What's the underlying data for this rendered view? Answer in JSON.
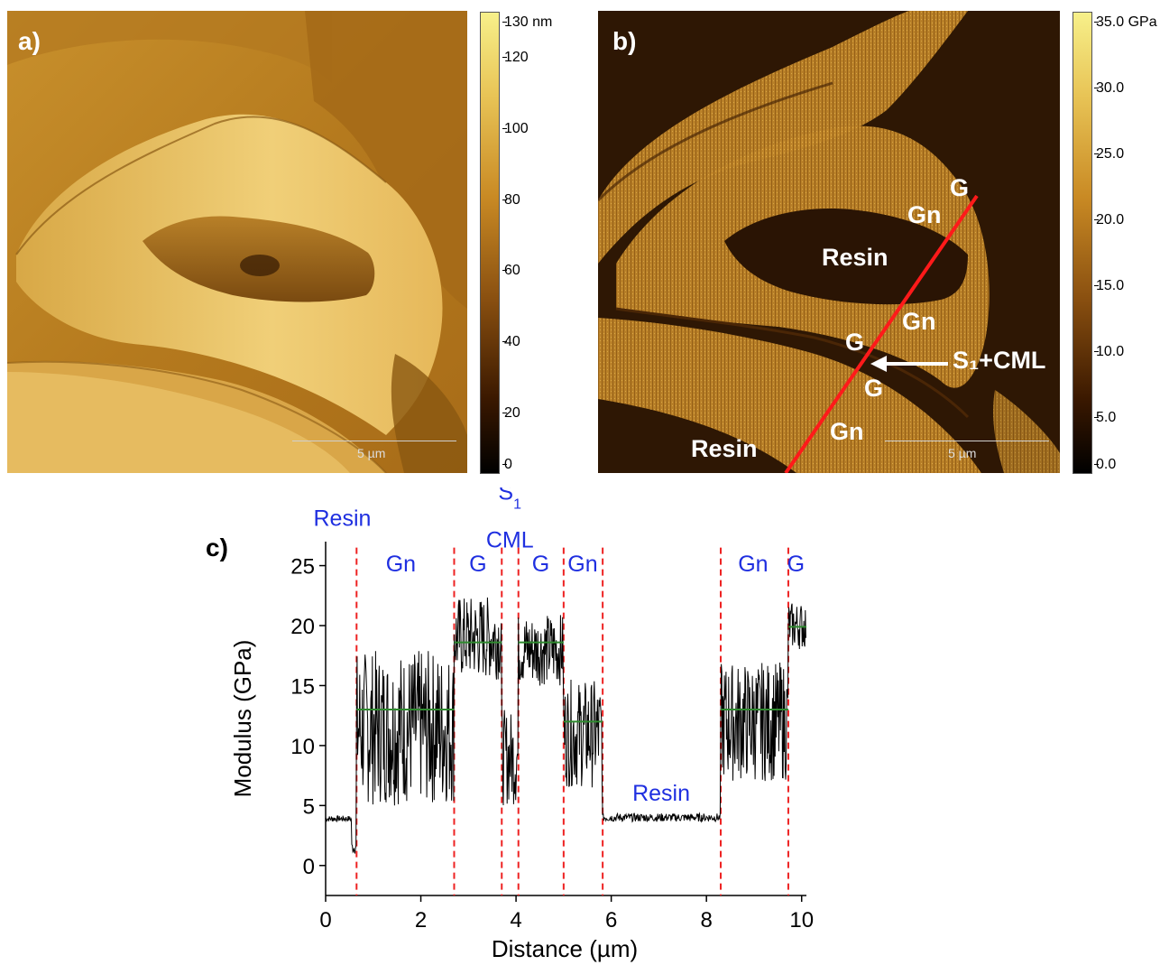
{
  "panel_a": {
    "letter": "a)",
    "scale_bar": "5 µm",
    "colorbar": {
      "ticks": [
        "130 nm",
        "120",
        "100",
        "80",
        "60",
        "40",
        "20",
        "0"
      ],
      "colors": [
        "#f7f08a",
        "#d6a032",
        "#8a5010",
        "#2a1200",
        "#000000"
      ]
    }
  },
  "panel_b": {
    "letter": "b)",
    "scale_bar": "5 µm",
    "labels": {
      "g_top": "G",
      "gn_top": "Gn",
      "resin_center": "Resin",
      "gn_mid": "Gn",
      "g_mid": "G",
      "s1_cml": "S₁+CML",
      "g_low": "G",
      "gn_low": "Gn",
      "resin_bottom": "Resin"
    },
    "colorbar": {
      "ticks": [
        "35.0 GPa",
        "30.0",
        "25.0",
        "20.0",
        "15.0",
        "10.0",
        "5.0",
        "0.0"
      ],
      "colors": [
        "#f7f08a",
        "#d6a032",
        "#8a5010",
        "#2a1200",
        "#000000"
      ]
    },
    "line_color": "#ff1a1a"
  },
  "chart_data": {
    "type": "line",
    "panel_label": "c)",
    "xlabel": "Distance (µm)",
    "ylabel": "Modulus (GPa)",
    "xlim": [
      0,
      10.1
    ],
    "ylim": [
      -2.5,
      27
    ],
    "xticks": [
      0,
      2,
      4,
      6,
      8,
      10
    ],
    "yticks": [
      0,
      5,
      10,
      15,
      20,
      25
    ],
    "region_boundaries": [
      0.65,
      2.7,
      3.7,
      4.05,
      5.0,
      5.82,
      8.3,
      9.72
    ],
    "region_labels": [
      {
        "text": "Resin",
        "x": 0.35,
        "y": 28.3
      },
      {
        "text": "Gn",
        "x": 1.58,
        "y": 24.5
      },
      {
        "text": "G",
        "x": 3.2,
        "y": 24.5
      },
      {
        "text": "S",
        "sub": "1",
        "x": 3.87,
        "y": 30.5
      },
      {
        "text": "CML",
        "x": 3.87,
        "y": 26.5
      },
      {
        "text": "G",
        "x": 4.52,
        "y": 24.5
      },
      {
        "text": "Gn",
        "x": 5.4,
        "y": 24.5
      },
      {
        "text": "Resin",
        "x": 7.05,
        "y": 5.4
      },
      {
        "text": "Gn",
        "x": 8.98,
        "y": 24.5
      },
      {
        "text": "G",
        "x": 9.88,
        "y": 24.5
      }
    ],
    "mean_lines": [
      {
        "x0": 0.65,
        "x1": 2.7,
        "y": 13.0
      },
      {
        "x0": 2.7,
        "x1": 3.7,
        "y": 18.6
      },
      {
        "x0": 4.05,
        "x1": 5.0,
        "y": 18.6
      },
      {
        "x0": 5.0,
        "x1": 5.82,
        "y": 12.0
      },
      {
        "x0": 8.3,
        "x1": 9.72,
        "y": 13.0
      },
      {
        "x0": 9.72,
        "x1": 10.1,
        "y": 19.9
      }
    ],
    "segments": [
      {
        "x0": 0.0,
        "x1": 0.55,
        "mean": 3.9,
        "amp": 0.25
      },
      {
        "x0": 0.55,
        "x1": 0.65,
        "mean": 1.5,
        "amp": 0.5
      },
      {
        "x0": 0.65,
        "x1": 2.7,
        "mean": 11.5,
        "amp": 6.5
      },
      {
        "x0": 2.7,
        "x1": 3.7,
        "mean": 19.0,
        "amp": 3.5
      },
      {
        "x0": 3.7,
        "x1": 4.05,
        "mean": 9.0,
        "amp": 4.0
      },
      {
        "x0": 4.05,
        "x1": 5.0,
        "mean": 18.0,
        "amp": 3.0
      },
      {
        "x0": 5.0,
        "x1": 5.82,
        "mean": 11.0,
        "amp": 4.5
      },
      {
        "x0": 5.82,
        "x1": 8.3,
        "mean": 4.0,
        "amp": 0.35
      },
      {
        "x0": 8.3,
        "x1": 9.72,
        "mean": 12.0,
        "amp": 5.0
      },
      {
        "x0": 9.72,
        "x1": 10.1,
        "mean": 20.0,
        "amp": 2.0
      }
    ],
    "colors": {
      "trace": "#000000",
      "boundary": "#ee2222",
      "mean": "#2f8a2f",
      "region_text": "#1f2fe0"
    }
  }
}
